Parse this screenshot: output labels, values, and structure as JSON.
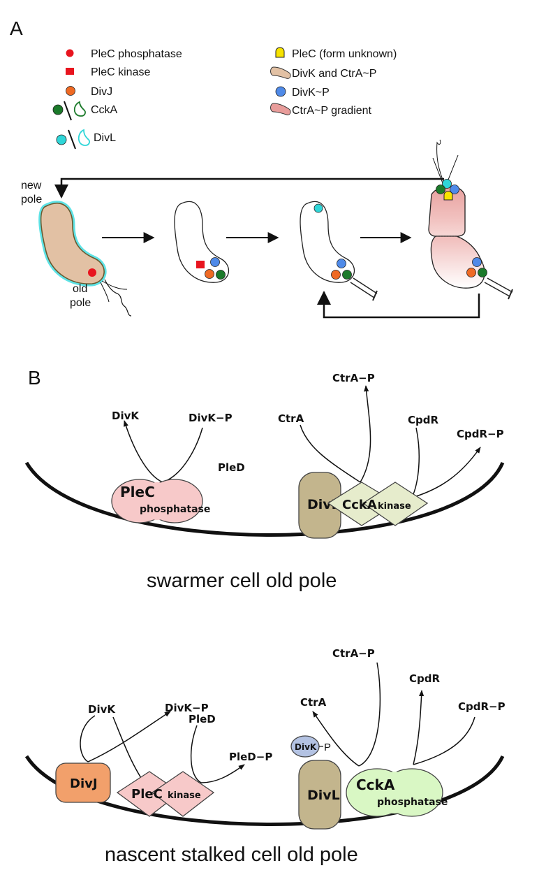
{
  "panels": {
    "a": "A",
    "b": "B"
  },
  "legend": {
    "pleC_phosphatase": "PleC phosphatase",
    "pleC_kinase": "PleC kinase",
    "divJ": "DivJ",
    "cckA": "CckA",
    "divL": "DivL",
    "pleC_unknown": "PleC (form unknown)",
    "divK_ctrA_p": "DivK and CtrA~P",
    "divK_p": "DivK~P",
    "ctrA_gradient": "CtrA~P gradient"
  },
  "cycle": {
    "new_pole": [
      "new",
      "pole"
    ],
    "old_pole": [
      "old",
      "pole"
    ]
  },
  "swarmer": {
    "divK": "DivK",
    "divK_p": "DivK−P",
    "pleD": "PleD",
    "ctrA": "CtrA",
    "ctrA_p": "CtrA−P",
    "cpdR": "CpdR",
    "cpdR_p": "CpdR−P",
    "pleC": "PleC",
    "pleC_sub": "phosphatase",
    "divL": "DivL",
    "cckA": "CckA",
    "cckA_sub": "kinase",
    "caption": "swarmer cell  old pole"
  },
  "stalked": {
    "divK": "DivK",
    "divK_p": "DivK−P",
    "pleD": "PleD",
    "pleD_p": "PleD−P",
    "ctrA": "CtrA",
    "ctrA_p": "CtrA−P",
    "cpdR": "CpdR",
    "cpdR_p": "CpdR−P",
    "divJ": "DivJ",
    "pleC": "PleC",
    "pleC_sub": "kinase",
    "divK_bound": "DivK",
    "divK_bound_p": "P",
    "divL": "DivL",
    "cckA": "CckA",
    "cckA_sub": "phosphatase",
    "caption": "nascent stalked cell  old pole"
  },
  "colors": {
    "pleC": "#e8141e",
    "divJ": "#ef6a24",
    "cckA": "#1b7a2a",
    "divL": "#2fd6d8",
    "divK_p": "#4f8ae8",
    "pleC_unknown": "#f7e300",
    "body_tan": "#e2c1a4",
    "gradient": "#e89c9a",
    "pleC_protein": "#f7c9c9",
    "cckA_kinase": "#e6eccc",
    "cckA_phosphatase": "#d9f7c4",
    "divL_protein": "#c3b58d",
    "divJ_protein": "#f2a06b",
    "divK_protein": "#b3c2e2"
  }
}
